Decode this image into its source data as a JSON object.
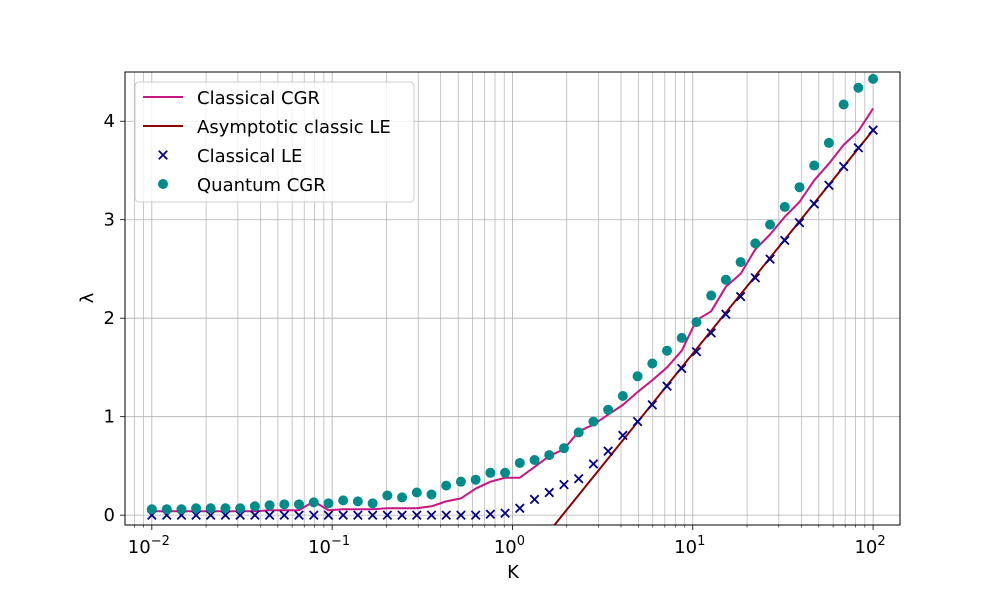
{
  "chart_data": {
    "type": "line",
    "xscale": "log",
    "xlabel": "K",
    "ylabel": "λ",
    "xlim": [
      0.0071,
      141
    ],
    "ylim": [
      -0.1,
      4.5
    ],
    "grid": true,
    "legend_position": "upper-left",
    "x_ticks": [
      {
        "base": "10",
        "exp": "−2",
        "value": 0.01
      },
      {
        "base": "10",
        "exp": "−1",
        "value": 0.1
      },
      {
        "base": "10",
        "exp": "0",
        "value": 1
      },
      {
        "base": "10",
        "exp": "1",
        "value": 10
      },
      {
        "base": "10",
        "exp": "2",
        "value": 100
      }
    ],
    "y_ticks": [
      {
        "label": "0",
        "value": 0
      },
      {
        "label": "1",
        "value": 1
      },
      {
        "label": "2",
        "value": 2
      },
      {
        "label": "3",
        "value": 3
      },
      {
        "label": "4",
        "value": 4
      }
    ],
    "colors": {
      "classical_cgr": "#c71585",
      "asymptotic": "#8b0000",
      "classical_le": "#00008b",
      "quantum_cgr": "#008b8b"
    },
    "x": [
      0.01,
      0.0121,
      0.0146,
      0.0176,
      0.0212,
      0.0256,
      0.0309,
      0.0373,
      0.045,
      0.0543,
      0.0655,
      0.0791,
      0.0954,
      0.1151,
      0.1389,
      0.1677,
      0.2024,
      0.2442,
      0.2947,
      0.3556,
      0.4292,
      0.5179,
      0.6251,
      0.7543,
      0.9103,
      1.0985,
      1.3257,
      1.5999,
      1.9307,
      2.33,
      2.8118,
      3.3932,
      4.0949,
      4.9417,
      5.9636,
      7.1969,
      8.6851,
      10.481,
      12.649,
      15.264,
      18.421,
      22.23,
      26.827,
      32.375,
      39.069,
      47.149,
      56.899,
      68.665,
      82.864,
      100.0
    ],
    "series": [
      {
        "name": "Classical CGR",
        "style": "line",
        "values": [
          0.04,
          0.04,
          0.04,
          0.04,
          0.04,
          0.04,
          0.04,
          0.04,
          0.05,
          0.05,
          0.05,
          0.14,
          0.05,
          0.06,
          0.06,
          0.06,
          0.07,
          0.07,
          0.07,
          0.09,
          0.14,
          0.17,
          0.27,
          0.34,
          0.38,
          0.38,
          0.49,
          0.6,
          0.67,
          0.85,
          0.92,
          1.02,
          1.12,
          1.25,
          1.37,
          1.5,
          1.67,
          1.98,
          2.07,
          2.32,
          2.45,
          2.7,
          2.85,
          3.03,
          3.18,
          3.4,
          3.57,
          3.76,
          3.9,
          4.13
        ]
      },
      {
        "name": "Asymptotic classic LE",
        "style": "line",
        "x": [
          1.71,
          100.0
        ],
        "values": [
          -0.1,
          3.91
        ]
      },
      {
        "name": "Classical LE",
        "style": "x-marker",
        "values": [
          0.0,
          0.0,
          0.0,
          0.0,
          0.0,
          0.0,
          0.0,
          0.0,
          0.0,
          0.0,
          0.0,
          0.0,
          0.0,
          0.0,
          0.0,
          0.0,
          0.0,
          0.0,
          0.0,
          0.0,
          0.0,
          0.0,
          0.0,
          0.01,
          0.02,
          0.07,
          0.16,
          0.23,
          0.31,
          0.37,
          0.52,
          0.65,
          0.81,
          0.95,
          1.12,
          1.31,
          1.49,
          1.66,
          1.85,
          2.04,
          2.22,
          2.41,
          2.6,
          2.79,
          2.97,
          3.16,
          3.35,
          3.54,
          3.73,
          3.91
        ]
      },
      {
        "name": "Quantum CGR",
        "style": "dot-marker",
        "values": [
          0.06,
          0.06,
          0.06,
          0.07,
          0.07,
          0.07,
          0.07,
          0.09,
          0.1,
          0.11,
          0.11,
          0.13,
          0.12,
          0.15,
          0.14,
          0.12,
          0.2,
          0.18,
          0.23,
          0.21,
          0.3,
          0.34,
          0.36,
          0.43,
          0.43,
          0.53,
          0.56,
          0.61,
          0.68,
          0.84,
          0.95,
          1.07,
          1.21,
          1.41,
          1.54,
          1.67,
          1.8,
          1.96,
          2.23,
          2.39,
          2.57,
          2.76,
          2.95,
          3.13,
          3.33,
          3.55,
          3.78,
          4.17,
          4.34,
          4.43
        ]
      }
    ]
  }
}
